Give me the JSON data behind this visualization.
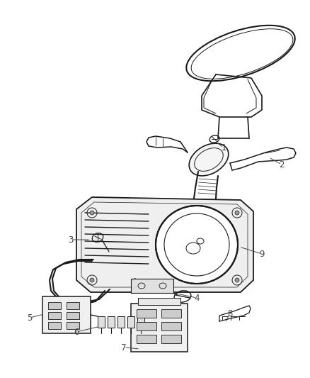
{
  "background_color": "#ffffff",
  "line_color": "#1a1a1a",
  "label_color": "#444444",
  "fig_width": 4.38,
  "fig_height": 5.33,
  "dpi": 100,
  "font_size": 8.5,
  "lw": 0.9
}
